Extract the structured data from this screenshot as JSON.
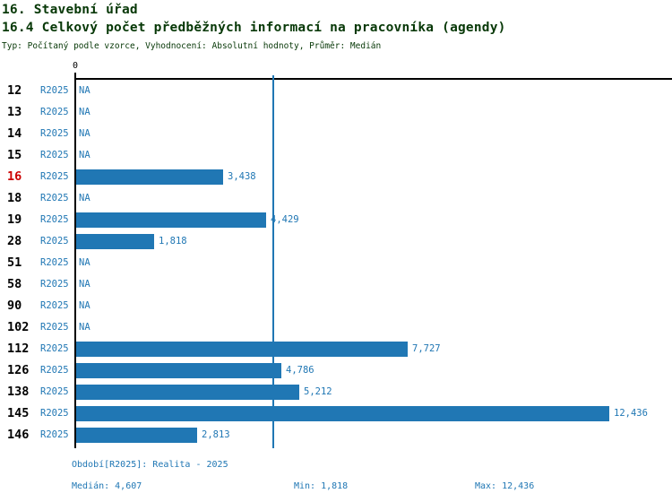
{
  "header": {
    "title": "16. Stavební úřad",
    "subtitle": "16.4 Celkový počet předběžných informací na pracovníka (agendy)",
    "meta": "Typ: Počítaný podle vzorce, Vyhodnocení: Absolutní hodnoty, Průměr: Medián"
  },
  "chart_data": {
    "type": "bar",
    "orientation": "horizontal",
    "title": "16.4 Celkový počet předběžných informací na pracovníka (agendy)",
    "categories": [
      "12",
      "13",
      "14",
      "15",
      "16",
      "18",
      "19",
      "28",
      "51",
      "58",
      "90",
      "102",
      "112",
      "126",
      "138",
      "145",
      "146"
    ],
    "series": [
      {
        "name": "R2025",
        "values": [
          null,
          null,
          null,
          null,
          3438,
          null,
          4429,
          1818,
          null,
          null,
          null,
          null,
          7727,
          4786,
          5212,
          12436,
          2813
        ]
      }
    ],
    "value_labels": [
      "NA",
      "NA",
      "NA",
      "NA",
      "3,438",
      "NA",
      "4,429",
      "1,818",
      "NA",
      "NA",
      "NA",
      "NA",
      "7,727",
      "4,786",
      "5,212",
      "12,436",
      "2,813"
    ],
    "na_text": "NA",
    "period_label": "R2025",
    "zero_label": "0",
    "xlim": [
      0,
      13900
    ],
    "grid": false,
    "median_value": 4607,
    "highlighted_category": "16",
    "xlabel": "",
    "ylabel": ""
  },
  "footer": {
    "period": "Období[R2025]: Realita - 2025",
    "median": "Medián: 4,607",
    "min": "Min: 1,818",
    "max": "Max: 12,436"
  },
  "colors": {
    "bar": "#2077B4",
    "median_line": "#2077B4",
    "blue_text": "#2077B4",
    "heading_text": "#073807",
    "highlight_row": "#CC0000",
    "axis": "#000000"
  }
}
